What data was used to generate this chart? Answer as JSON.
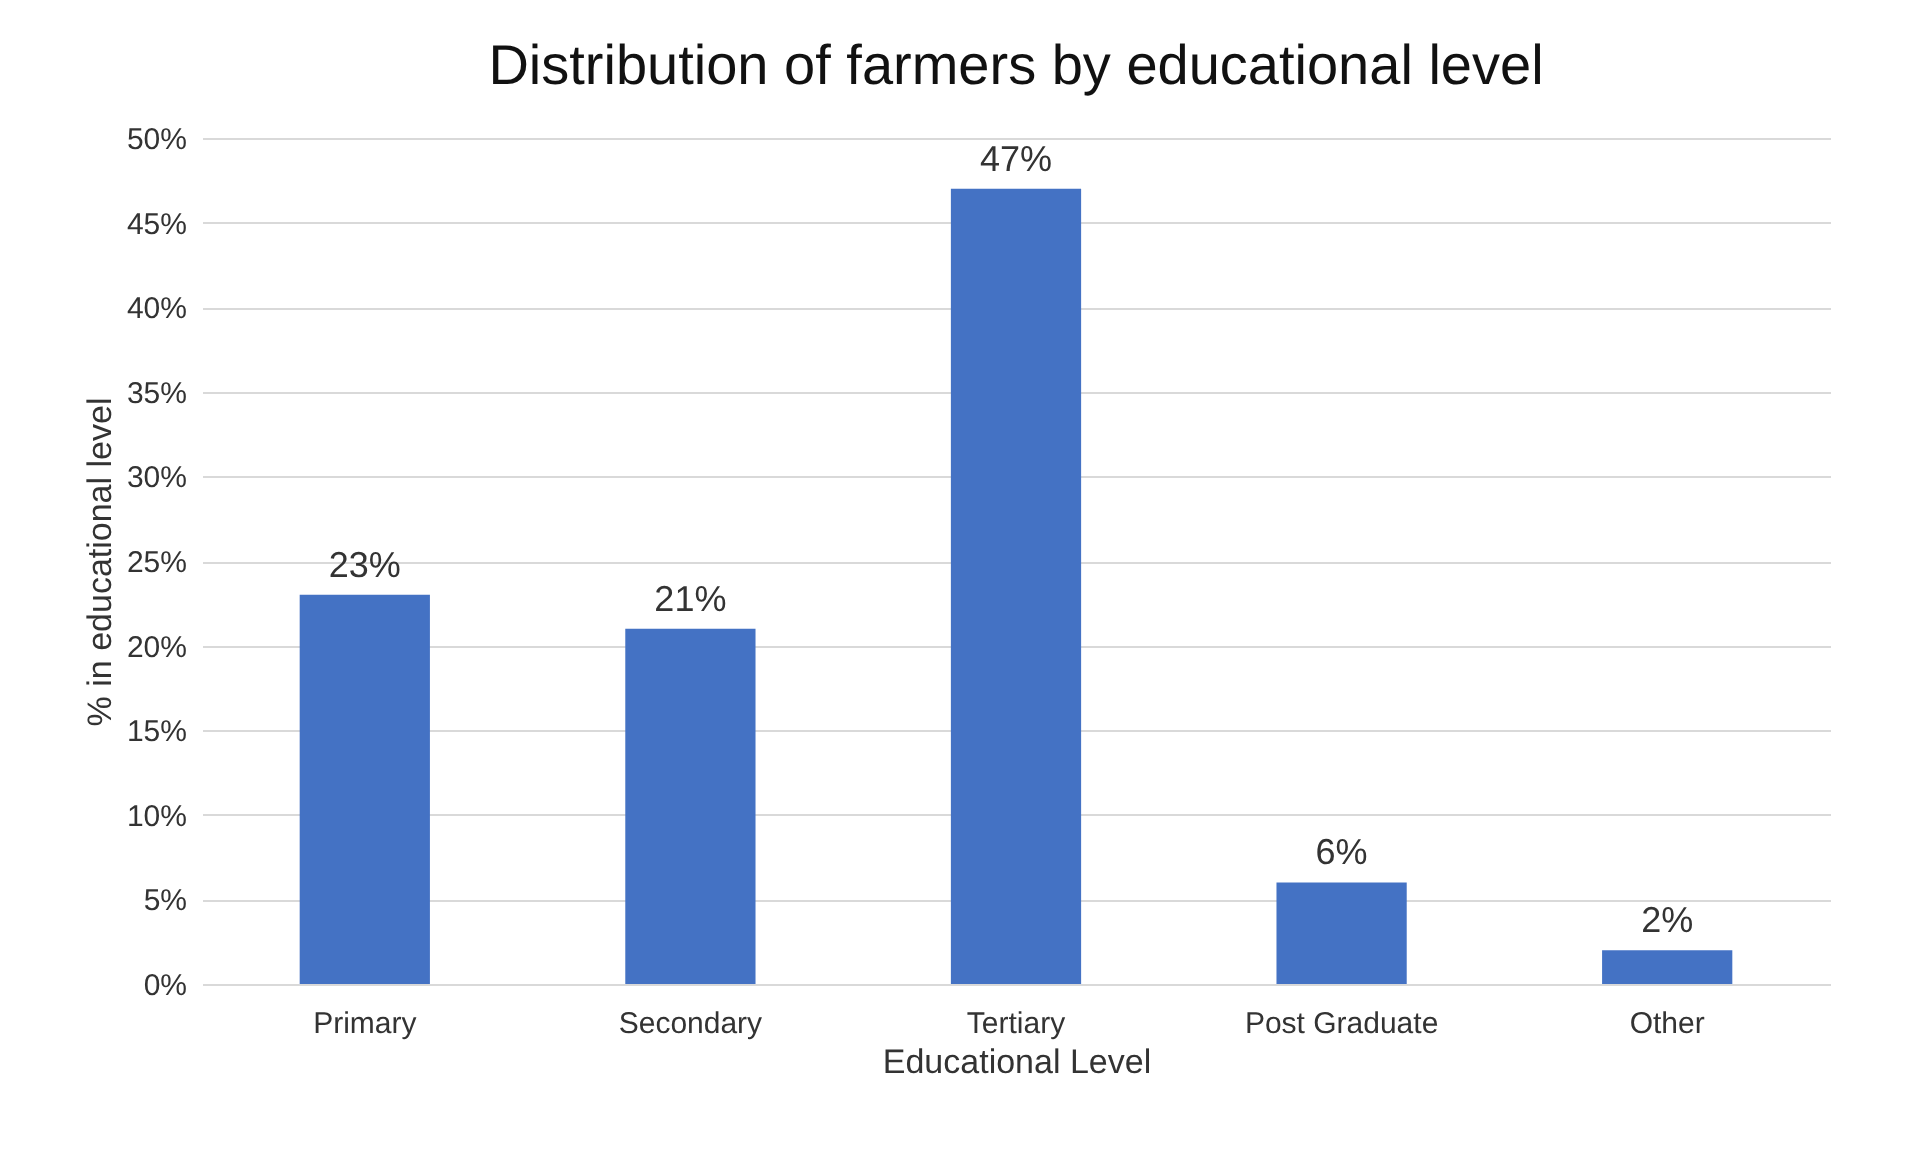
{
  "chart_data": {
    "type": "bar",
    "title": "Distribution of farmers by educational level",
    "xlabel": "Educational Level",
    "ylabel": "% in educational level",
    "categories": [
      "Primary",
      "Secondary",
      "Tertiary",
      "Post Graduate",
      "Other"
    ],
    "values": [
      23,
      21,
      47,
      6,
      2
    ],
    "value_labels": [
      "23%",
      "21%",
      "47%",
      "6%",
      "2%"
    ],
    "color": "#4472c4",
    "ylim": [
      0,
      50
    ],
    "yticks": [
      {
        "value": 0,
        "label": "0%"
      },
      {
        "value": 5,
        "label": "5%"
      },
      {
        "value": 10,
        "label": "10%"
      },
      {
        "value": 15,
        "label": "15%"
      },
      {
        "value": 20,
        "label": "20%"
      },
      {
        "value": 25,
        "label": "25%"
      },
      {
        "value": 30,
        "label": "30%"
      },
      {
        "value": 35,
        "label": "35%"
      },
      {
        "value": 40,
        "label": "40%"
      },
      {
        "value": 45,
        "label": "45%"
      },
      {
        "value": 50,
        "label": "50%"
      }
    ],
    "grid": "y"
  }
}
